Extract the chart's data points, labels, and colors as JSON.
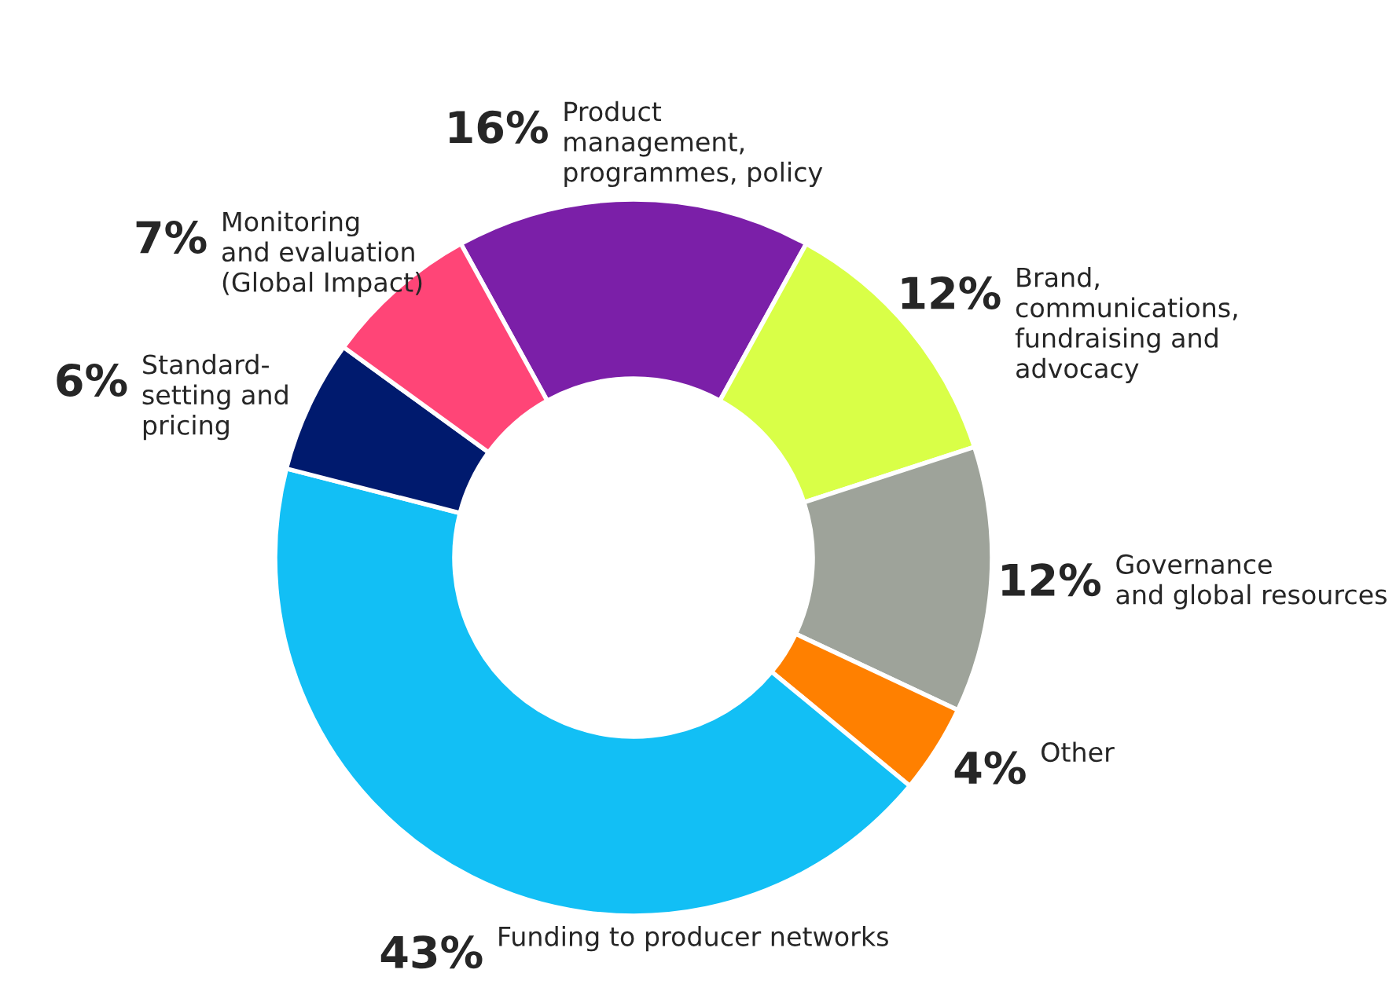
{
  "chart_data": {
    "type": "donut",
    "categories": [
      "Product\nmanagement,\nprogrammes, policy",
      "Brand,\ncommunications,\nfundraising and\nadvocacy",
      "Governance\nand global resources",
      "Other",
      "Funding to producer networks",
      "Standard-\nsetting and\npricing",
      "Monitoring\nand evaluation\n(Global Impact)"
    ],
    "values": [
      16,
      12,
      12,
      4,
      43,
      6,
      7
    ],
    "value_labels": [
      "16%",
      "12%",
      "12%",
      "4%",
      "43%",
      "6%",
      "7%"
    ],
    "colors": [
      "#7b1fa8",
      "#d9ff47",
      "#9ea39a",
      "#ff8000",
      "#12bff5",
      "#001a6e",
      "#ff4577"
    ]
  }
}
